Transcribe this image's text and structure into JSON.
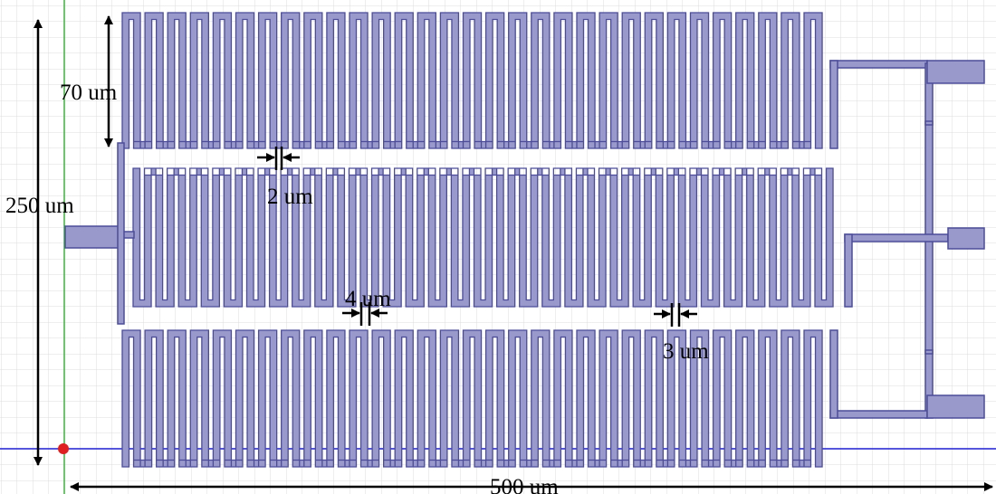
{
  "dimensions": {
    "top_row_height": "70 um",
    "total_height": "250 um",
    "total_width": "500 um",
    "gap_top": "2 um",
    "gap_middle": "4 um",
    "gap_right": "3 um"
  },
  "colors": {
    "metal_fill": "#9999cc",
    "metal_outline": "#4c4c99",
    "grid": "#dcdcdc",
    "x_axis": "#1f1fd0",
    "y_axis": "#3cb43c",
    "origin": "#e02020",
    "annotation": "#000000"
  },
  "serpentine_rows": {
    "top": {
      "loops": 31
    },
    "middle": {
      "loops": 31
    },
    "bottom": {
      "loops": 31
    }
  },
  "icons": {
    "origin_marker": "origin-dot-icon"
  }
}
